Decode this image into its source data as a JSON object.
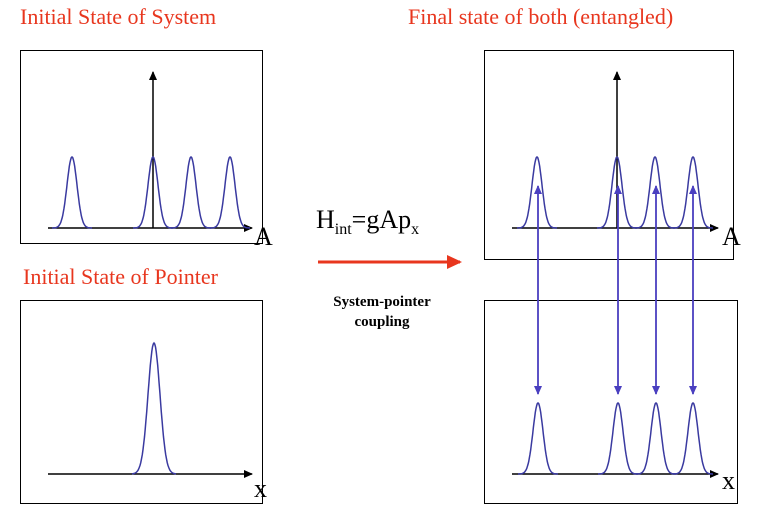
{
  "titles": {
    "initial_system": "Initial State of System",
    "final_state": "Final state of both (entangled)",
    "initial_pointer": "Initial State of Pointer"
  },
  "axis_labels": {
    "system_initial": "A",
    "system_final": "A",
    "pointer_initial": "x",
    "pointer_final": "x"
  },
  "interaction": {
    "h": "H",
    "sub": "int",
    "rhs_main": "=gAp",
    "rhs_sub": "x",
    "coupling_line1": "System-pointer",
    "coupling_line2": "coupling"
  },
  "colors": {
    "title_red": "#e8361e",
    "curve_blue": "#3a3aa0",
    "arrow_red": "#e8361e",
    "arrow_blue": "#4a3fc0"
  }
}
